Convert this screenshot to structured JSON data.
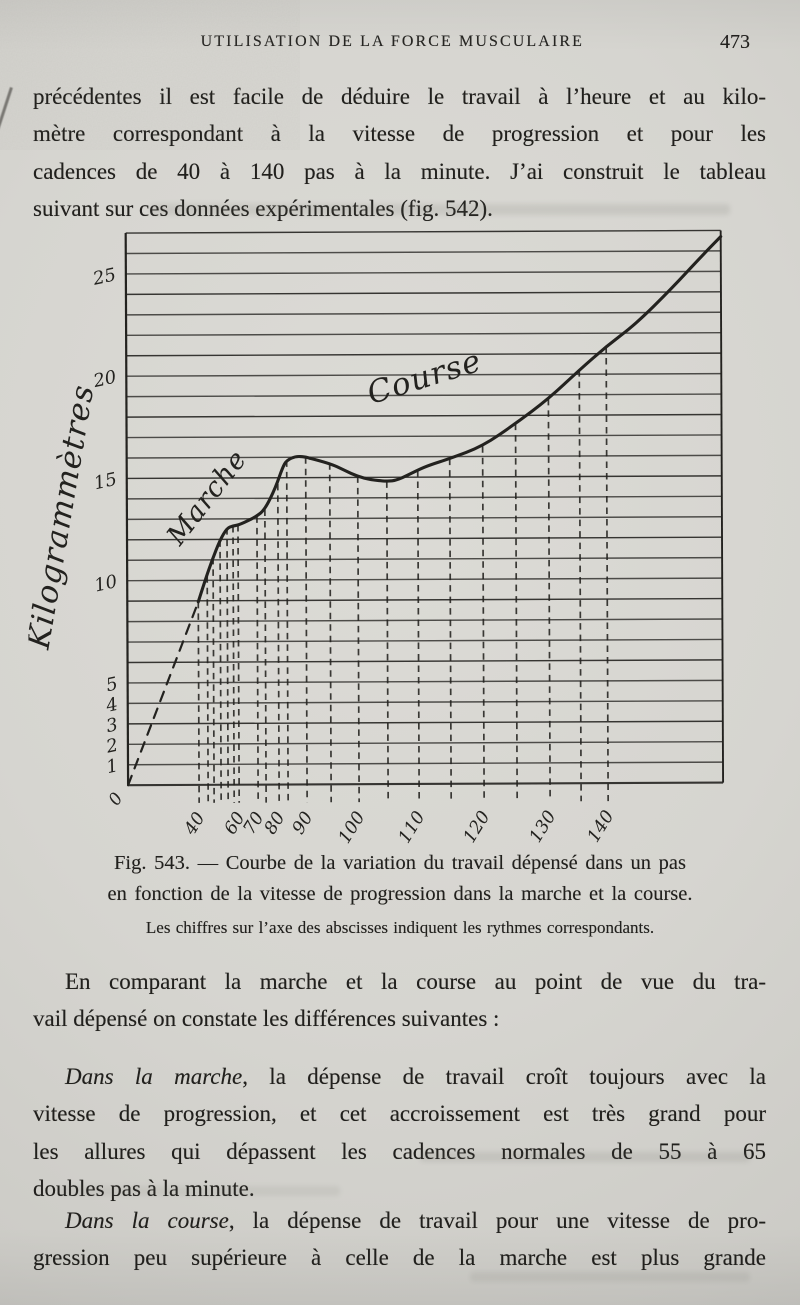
{
  "header": {
    "title": "UTILISATION DE LA FORCE MUSCULAIRE",
    "page_number": "473"
  },
  "body": {
    "p1": {
      "lines": [
        "précédentes il est facile de déduire le travail à l’heure et au kilo-",
        "mètre correspondant à la vitesse de progression et pour les",
        "cadences de 40 à 140 pas à la minute. J’ai construit le tableau",
        "suivant sur ces données expérimentales (fig. 542)."
      ]
    },
    "p2": {
      "lines": [
        "En comparant la marche et la course au point de vue du tra-",
        "vail dépensé on constate les différences suivantes :"
      ]
    },
    "p3": {
      "lead": "Dans la marche",
      "lines": [
        ", la dépense de travail croît toujours avec la",
        "vitesse de progression, et cet accroissement est très grand pour",
        "les allures qui dépassent les cadences normales de 55 à 65",
        "doubles pas à la minute."
      ]
    },
    "p4": {
      "lead": "Dans la course",
      "lines": [
        ", la dépense de travail pour une vitesse de pro-",
        "gression peu supérieure à celle de la marche est plus grande"
      ]
    }
  },
  "caption": {
    "line1": "Fig. 543. — Courbe de la variation du travail dépensé dans un pas",
    "line2": "en fonction de la vitesse de progression dans la marche et la course.",
    "note": "Les chiffres sur l’axe des abscisses indiquent les rythmes correspondants."
  },
  "chart_data": {
    "type": "line",
    "title": "Courbe de la variation du travail dépensé dans un pas en fonction de la vitesse de progression dans la marche et la course",
    "ylabel": "Kilogrammètres",
    "xlabel": "",
    "x_axis_note": "les chiffres indiquent les rythmes correspondants (pas à la minute)",
    "ylim": [
      0,
      27
    ],
    "grid": "horizontal, 1 kilogrammètre per line",
    "legend_position": "labels on curves",
    "origin_label": "0",
    "y_ticks": [
      {
        "label": "25",
        "v": 25
      },
      {
        "label": "20",
        "v": 20
      },
      {
        "label": "15",
        "v": 15
      },
      {
        "label": "10",
        "v": 10
      },
      {
        "label": "5",
        "v": 5
      },
      {
        "label": "4",
        "v": 4
      },
      {
        "label": "3",
        "v": 3
      },
      {
        "label": "2",
        "v": 2
      },
      {
        "label": "1",
        "v": 1
      }
    ],
    "x_ticks": [
      {
        "label": "40",
        "pos": 0.1193
      },
      {
        "label": "60",
        "pos": 0.1866
      },
      {
        "label": "70",
        "pos": 0.2185
      },
      {
        "label": "80",
        "pos": 0.2538
      },
      {
        "label": "90",
        "pos": 0.3008
      },
      {
        "label": "100",
        "pos": 0.3882
      },
      {
        "label": "110",
        "pos": 0.4891
      },
      {
        "label": "120",
        "pos": 0.5983
      },
      {
        "label": "130",
        "pos": 0.7092
      },
      {
        "label": "140",
        "pos": 0.8067
      }
    ],
    "curve_labels": [
      {
        "text": "Marche",
        "x": 186,
        "y": 278,
        "angle": -52,
        "size": 27
      },
      {
        "text": "Course",
        "x": 400,
        "y": 163,
        "angle": -17,
        "size": 31
      }
    ],
    "series": [
      {
        "name": "marche-interpolée",
        "style": "dashed",
        "points": [
          [
            0,
            0
          ],
          [
            0.1193,
            8.95
          ]
        ]
      },
      {
        "name": "Marche",
        "style": "solid",
        "points": [
          [
            0.1193,
            8.95
          ],
          [
            0.131,
            10.0
          ],
          [
            0.143,
            11.0
          ],
          [
            0.156,
            11.95
          ],
          [
            0.168,
            12.55
          ],
          [
            0.178,
            12.65
          ],
          [
            0.19,
            12.72
          ],
          [
            0.217,
            13.1
          ],
          [
            0.232,
            13.45
          ],
          [
            0.2504,
            14.55
          ],
          [
            0.262,
            15.5
          ],
          [
            0.2689,
            15.85
          ],
          [
            0.284,
            16.05
          ],
          [
            0.2992,
            16.02
          ],
          [
            0.308,
            15.95
          ]
        ]
      },
      {
        "name": "Course",
        "style": "solid",
        "points": [
          [
            0.308,
            15.95
          ],
          [
            0.3412,
            15.7
          ],
          [
            0.366,
            15.35
          ],
          [
            0.3882,
            15.05
          ],
          [
            0.41,
            14.88
          ],
          [
            0.437,
            14.8
          ],
          [
            0.455,
            14.85
          ],
          [
            0.4891,
            15.35
          ],
          [
            0.51,
            15.6
          ],
          [
            0.5429,
            15.9
          ],
          [
            0.5983,
            16.5
          ],
          [
            0.6538,
            17.6
          ],
          [
            0.7092,
            18.8
          ],
          [
            0.7613,
            20.2
          ],
          [
            0.8067,
            21.35
          ],
          [
            0.857,
            22.45
          ],
          [
            0.918,
            24.2
          ],
          [
            0.963,
            25.6
          ],
          [
            1.0,
            26.7
          ]
        ]
      }
    ],
    "droplines": [
      [
        0.1193,
        8.95
      ],
      [
        0.1345,
        10.2
      ],
      [
        0.1445,
        11.1
      ],
      [
        0.1563,
        11.95
      ],
      [
        0.1681,
        12.55
      ],
      [
        0.1782,
        12.65
      ],
      [
        0.1866,
        12.7
      ],
      [
        0.2185,
        13.12
      ],
      [
        0.2319,
        13.45
      ],
      [
        0.2538,
        14.7
      ],
      [
        0.2689,
        15.85
      ],
      [
        0.3008,
        16.0
      ],
      [
        0.3412,
        15.7
      ],
      [
        0.3882,
        15.05
      ],
      [
        0.437,
        14.8
      ],
      [
        0.4891,
        15.35
      ],
      [
        0.5429,
        15.9
      ],
      [
        0.5983,
        16.5
      ],
      [
        0.6538,
        17.6
      ],
      [
        0.7092,
        18.8
      ],
      [
        0.7613,
        20.2
      ],
      [
        0.8067,
        21.35
      ]
    ],
    "ink_color": "#23221f",
    "grid_color": "#2e2d2a"
  }
}
